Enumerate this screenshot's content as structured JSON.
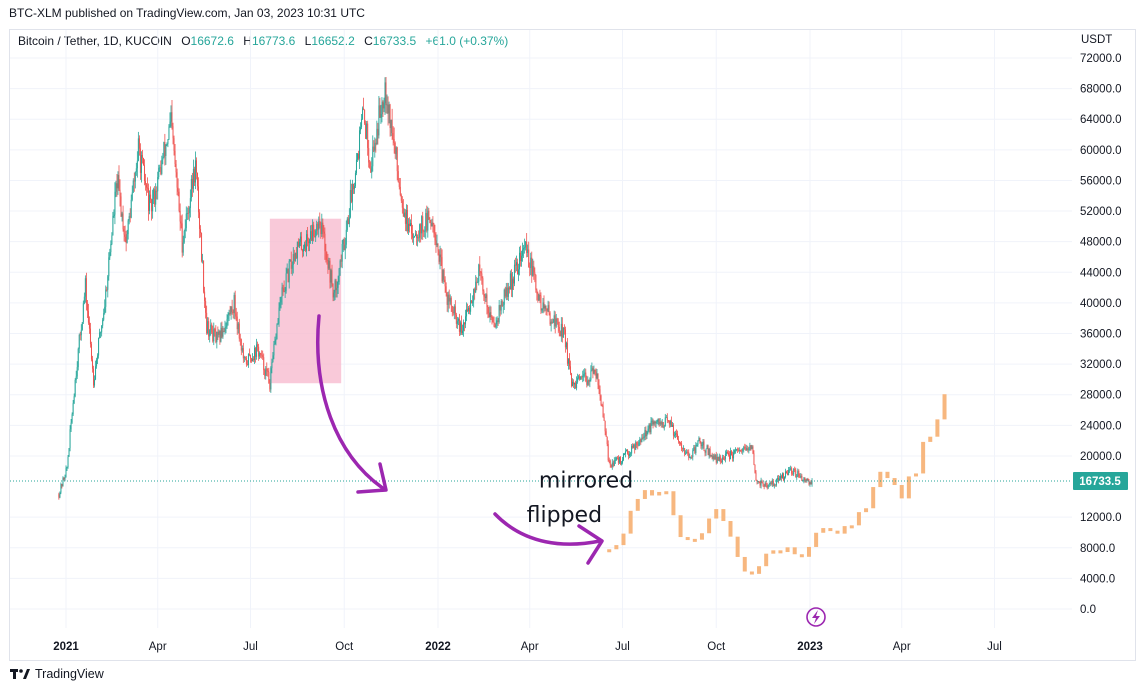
{
  "header": {
    "published_line": "BTC-XLM published on TradingView.com, Jan 03, 2023 10:31 UTC",
    "symbol": "Bitcoin / Tether, 1D, KUCOIN",
    "o_key": "O",
    "o_val": "16672.6",
    "h_key": "H",
    "h_val": "16773.6",
    "l_key": "L",
    "l_val": "16652.2",
    "c_key": "C",
    "c_val": "16733.5",
    "change": "+61.0 (+0.37%)"
  },
  "footer": {
    "brand": "TradingView"
  },
  "colors": {
    "up": "#26a69a",
    "down": "#ef5350",
    "projection": "#f7b77f",
    "highlight": "#f8bbd0",
    "arrow": "#9c27b0",
    "price_tag": "#26a69a"
  },
  "chart_data": {
    "type": "candlestick",
    "instrument": "Bitcoin / Tether",
    "interval": "1D",
    "exchange": "KUCOIN",
    "y_unit": "USDT",
    "ylim": [
      -2000,
      74000
    ],
    "y_ticks": [
      "72000.0",
      "68000.0",
      "64000.0",
      "60000.0",
      "56000.0",
      "52000.0",
      "48000.0",
      "44000.0",
      "40000.0",
      "36000.0",
      "32000.0",
      "28000.0",
      "24000.0",
      "20000.0",
      "16733.5",
      "12000.0",
      "8000.0",
      "4000.0",
      "0.0"
    ],
    "x_ticks": [
      "2021",
      "Apr",
      "Jul",
      "Oct",
      "2022",
      "Apr",
      "Jul",
      "Oct",
      "2023",
      "Apr",
      "Jul"
    ],
    "last_price": "16733.5",
    "series": [
      {
        "name": "",
        "points": [
          [
            "2020-12-25",
            15000
          ],
          [
            "2021-01-02",
            18500
          ],
          [
            "2021-01-10",
            30000
          ],
          [
            "2021-01-20",
            42000
          ],
          [
            "2021-01-28",
            30000
          ],
          [
            "2021-02-08",
            40000
          ],
          [
            "2021-02-20",
            56000
          ],
          [
            "2021-03-01",
            48000
          ],
          [
            "2021-03-13",
            60000
          ],
          [
            "2021-03-25",
            52000
          ],
          [
            "2021-04-14",
            63500
          ],
          [
            "2021-04-25",
            48000
          ],
          [
            "2021-05-08",
            58000
          ],
          [
            "2021-05-19",
            37000
          ],
          [
            "2021-05-30",
            35000
          ],
          [
            "2021-06-15",
            40000
          ],
          [
            "2021-06-25",
            32000
          ],
          [
            "2021-07-08",
            34000
          ],
          [
            "2021-07-20",
            29500
          ],
          [
            "2021-07-30",
            40000
          ],
          [
            "2021-08-14",
            47000
          ],
          [
            "2021-08-25",
            48000
          ],
          [
            "2021-09-07",
            51000
          ],
          [
            "2021-09-21",
            41000
          ],
          [
            "2021-10-01",
            48000
          ],
          [
            "2021-10-20",
            65000
          ],
          [
            "2021-10-27",
            58000
          ],
          [
            "2021-11-10",
            68800
          ],
          [
            "2021-11-26",
            54000
          ],
          [
            "2021-12-04",
            49000
          ],
          [
            "2021-12-27",
            51000
          ],
          [
            "2022-01-08",
            41500
          ],
          [
            "2022-01-24",
            36000
          ],
          [
            "2022-02-10",
            44000
          ],
          [
            "2022-02-24",
            37000
          ],
          [
            "2022-03-28",
            47500
          ],
          [
            "2022-04-11",
            40000
          ],
          [
            "2022-05-05",
            36000
          ],
          [
            "2022-05-12",
            29000
          ],
          [
            "2022-06-06",
            31000
          ],
          [
            "2022-06-18",
            19000
          ],
          [
            "2022-06-30",
            19500
          ],
          [
            "2022-07-30",
            24000
          ],
          [
            "2022-08-15",
            24500
          ],
          [
            "2022-09-06",
            19500
          ],
          [
            "2022-09-13",
            22000
          ],
          [
            "2022-10-01",
            19500
          ],
          [
            "2022-11-05",
            21000
          ],
          [
            "2022-11-09",
            16800
          ],
          [
            "2022-11-21",
            16000
          ],
          [
            "2022-12-14",
            18000
          ],
          [
            "2022-12-31",
            16700
          ],
          [
            "2023-01-03",
            16733.5
          ]
        ]
      },
      {
        "name": "",
        "points": [
          [
            "2022-06-18",
            7500
          ],
          [
            "2022-06-30",
            8500
          ],
          [
            "2022-07-10",
            14000
          ],
          [
            "2022-07-30",
            15500
          ],
          [
            "2022-08-12",
            16000
          ],
          [
            "2022-08-22",
            10500
          ],
          [
            "2022-09-06",
            8500
          ],
          [
            "2022-09-18",
            10500
          ],
          [
            "2022-10-03",
            13500
          ],
          [
            "2022-10-18",
            8000
          ],
          [
            "2022-11-02",
            4000
          ],
          [
            "2022-11-20",
            7000
          ],
          [
            "2022-12-10",
            8000
          ],
          [
            "2022-12-28",
            6500
          ],
          [
            "2023-01-10",
            11500
          ],
          [
            "2023-01-25",
            9500
          ],
          [
            "2023-02-10",
            11000
          ],
          [
            "2023-02-28",
            14000
          ],
          [
            "2023-03-08",
            19000
          ],
          [
            "2023-03-20",
            18000
          ],
          [
            "2023-03-30",
            15000
          ],
          [
            "2023-04-12",
            17000
          ],
          [
            "2023-04-22",
            21500
          ],
          [
            "2023-05-05",
            26000
          ],
          [
            "2023-05-15",
            27800
          ]
        ]
      }
    ],
    "highlight_box": {
      "from": "2021-07-20",
      "to": "2021-09-28",
      "low": 29500,
      "high": 51000
    },
    "annotations": [
      {
        "text": "mirrored",
        "date": "2022-04-10",
        "price": 16800
      },
      {
        "text": "flipped",
        "date": "2022-03-29",
        "price": 12300
      }
    ]
  }
}
